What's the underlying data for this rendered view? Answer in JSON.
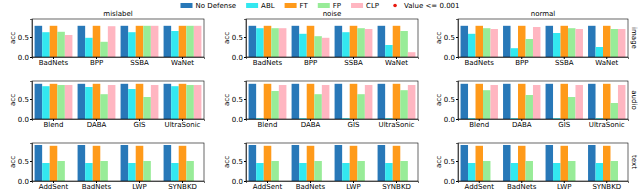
{
  "chart_data": [
    {
      "type": "bar",
      "title": "mislabel",
      "y_label": "acc",
      "categories": [
        "BadNets",
        "BPP",
        "SSBA",
        "WaNet"
      ],
      "ylim": [
        0,
        0.95
      ],
      "yticks": [
        {
          "value": 0,
          "label": "0.0"
        },
        {
          "value": 0.5,
          "label": "0.5"
        }
      ],
      "legend": "top",
      "series": [
        {
          "name": "No Defense",
          "color": "#2878b8",
          "values": [
            0.78,
            0.78,
            0.78,
            0.78
          ]
        },
        {
          "name": "ABL",
          "color": "#33e8f0",
          "values": [
            0.62,
            0.48,
            0.62,
            0.65
          ]
        },
        {
          "name": "FT",
          "color": "#ff9a1a",
          "values": [
            0.78,
            0.78,
            0.78,
            0.78
          ]
        },
        {
          "name": "FP",
          "color": "#98ec98",
          "values": [
            0.63,
            0.38,
            0.78,
            0.78
          ]
        },
        {
          "name": "CLP",
          "color": "#ffb6c1",
          "values": [
            0.55,
            0.77,
            0.78,
            0.78
          ]
        },
        {
          "name": "Value <= 0.001",
          "color": "#e8190f",
          "type": "scatter",
          "marker": "circle",
          "values": [
            null,
            null,
            null,
            null
          ]
        }
      ]
    },
    {
      "type": "bar",
      "title": "noise",
      "y_label": "acc",
      "categories": [
        "BadNets",
        "BPP",
        "SSBA",
        "WaNet"
      ],
      "ylim": [
        0,
        0.95
      ],
      "yticks": [
        {
          "value": 0,
          "label": "0.0"
        },
        {
          "value": 0.5,
          "label": "0.5"
        }
      ],
      "series": [
        {
          "color": "#2878b8",
          "values": [
            0.78,
            0.78,
            0.78,
            0.78
          ]
        },
        {
          "color": "#33e8f0",
          "values": [
            0.72,
            0.58,
            0.62,
            0.3
          ]
        },
        {
          "color": "#ff9a1a",
          "values": [
            0.78,
            0.78,
            0.78,
            0.78
          ]
        },
        {
          "color": "#98ec98",
          "values": [
            0.72,
            0.52,
            0.72,
            0.65
          ]
        },
        {
          "color": "#ffb6c1",
          "values": [
            0.72,
            0.48,
            0.7,
            0.12
          ]
        }
      ]
    },
    {
      "type": "bar",
      "title": "normal",
      "y_label": "acc",
      "annotation": "image",
      "categories": [
        "BadNets",
        "BPP",
        "SSBA",
        "WaNet"
      ],
      "ylim": [
        0,
        0.95
      ],
      "yticks": [
        {
          "value": 0,
          "label": "0.0"
        },
        {
          "value": 0.5,
          "label": "0.5"
        }
      ],
      "series": [
        {
          "color": "#2878b8",
          "values": [
            0.78,
            0.78,
            0.78,
            0.78
          ]
        },
        {
          "color": "#33e8f0",
          "values": [
            0.58,
            0.22,
            0.6,
            0.25
          ]
        },
        {
          "color": "#ff9a1a",
          "values": [
            0.78,
            0.78,
            0.78,
            0.78
          ]
        },
        {
          "color": "#98ec98",
          "values": [
            0.72,
            0.45,
            0.72,
            0.7
          ]
        },
        {
          "color": "#ffb6c1",
          "values": [
            0.7,
            0.75,
            0.7,
            0.7
          ]
        }
      ]
    },
    {
      "type": "bar",
      "y_label": "acc",
      "categories": [
        "Blend",
        "DABA",
        "GIS",
        "UltraSonic"
      ],
      "ylim": [
        0,
        0.95
      ],
      "yticks": [
        {
          "value": 0,
          "label": "0.0"
        },
        {
          "value": 0.5,
          "label": "0.5"
        }
      ],
      "series": [
        {
          "color": "#2878b8",
          "values": [
            0.88,
            0.88,
            0.88,
            0.88
          ]
        },
        {
          "color": "#33e8f0",
          "values": [
            0.82,
            0.8,
            0.75,
            0.82
          ]
        },
        {
          "color": "#ff9a1a",
          "values": [
            0.88,
            0.88,
            0.88,
            0.88
          ]
        },
        {
          "color": "#98ec98",
          "values": [
            0.85,
            0.62,
            0.55,
            0.85
          ]
        },
        {
          "color": "#ffb6c1",
          "values": [
            0.85,
            0.85,
            0.85,
            0.85
          ]
        }
      ]
    },
    {
      "type": "bar",
      "y_label": "acc",
      "categories": [
        "Blend",
        "DABA",
        "GIS",
        "UltraSonic"
      ],
      "ylim": [
        0,
        0.95
      ],
      "yticks": [
        {
          "value": 0,
          "label": "0.0"
        },
        {
          "value": 0.5,
          "label": "0.5"
        }
      ],
      "series": [
        {
          "color": "#2878b8",
          "values": [
            0.88,
            0.88,
            0.88,
            0.88
          ]
        },
        {
          "color": "#33e8f0",
          "values": [
            0.02,
            0.02,
            0.02,
            0.02
          ]
        },
        {
          "color": "#ff9a1a",
          "values": [
            0.88,
            0.88,
            0.88,
            0.88
          ]
        },
        {
          "color": "#98ec98",
          "values": [
            0.7,
            0.62,
            0.62,
            0.72
          ]
        },
        {
          "color": "#ffb6c1",
          "values": [
            0.85,
            0.85,
            0.85,
            0.85
          ]
        }
      ]
    },
    {
      "type": "bar",
      "y_label": "acc",
      "annotation": "audio",
      "categories": [
        "Blend",
        "DABA",
        "GIS",
        "UltraSonic"
      ],
      "ylim": [
        0,
        0.95
      ],
      "yticks": [
        {
          "value": 0,
          "label": "0.0"
        },
        {
          "value": 0.5,
          "label": "0.5"
        }
      ],
      "series": [
        {
          "color": "#2878b8",
          "values": [
            0.88,
            0.88,
            0.88,
            0.88
          ]
        },
        {
          "color": "#33e8f0",
          "values": [
            0.02,
            0.02,
            0.02,
            0.02
          ]
        },
        {
          "color": "#ff9a1a",
          "values": [
            0.88,
            0.88,
            0.88,
            0.88
          ]
        },
        {
          "color": "#98ec98",
          "values": [
            0.72,
            0.6,
            0.55,
            0.4
          ]
        },
        {
          "color": "#ffb6c1",
          "values": [
            0.85,
            0.85,
            0.85,
            0.85
          ]
        }
      ]
    },
    {
      "type": "bar",
      "y_label": "acc",
      "categories": [
        "AddSent",
        "BadNets",
        "LWP",
        "SYNBKD"
      ],
      "ylim": [
        0,
        0.95
      ],
      "yticks": [
        {
          "value": 0,
          "label": "0.0"
        },
        {
          "value": 0.5,
          "label": "0.5"
        }
      ],
      "series": [
        {
          "color": "#2878b8",
          "values": [
            0.9,
            0.9,
            0.9,
            0.9
          ]
        },
        {
          "color": "#33e8f0",
          "values": [
            0.45,
            0.45,
            0.45,
            0.45
          ]
        },
        {
          "color": "#ff9a1a",
          "values": [
            0.88,
            0.88,
            0.88,
            0.88
          ]
        },
        {
          "color": "#98ec98",
          "values": [
            0.5,
            0.5,
            0.5,
            0.5
          ]
        },
        {
          "color": "#ffb6c1",
          "values": [
            0,
            0,
            0,
            0
          ]
        }
      ]
    },
    {
      "type": "bar",
      "y_label": "acc",
      "categories": [
        "AddSent",
        "BadNets",
        "LWP",
        "SYNBKD"
      ],
      "ylim": [
        0,
        0.95
      ],
      "yticks": [
        {
          "value": 0,
          "label": "0.0"
        },
        {
          "value": 0.5,
          "label": "0.5"
        }
      ],
      "series": [
        {
          "color": "#2878b8",
          "values": [
            0.9,
            0.9,
            0.9,
            0.9
          ]
        },
        {
          "color": "#33e8f0",
          "values": [
            0.45,
            0.45,
            0.45,
            0.45
          ]
        },
        {
          "color": "#ff9a1a",
          "values": [
            0.88,
            0.88,
            0.88,
            0.88
          ]
        },
        {
          "color": "#98ec98",
          "values": [
            0.5,
            0.5,
            0.5,
            0.5
          ]
        },
        {
          "color": "#ffb6c1",
          "values": [
            0,
            0,
            0,
            0
          ]
        }
      ]
    },
    {
      "type": "bar",
      "y_label": "acc",
      "annotation": "text",
      "categories": [
        "AddSent",
        "BadNets",
        "LWP",
        "SYNBKD"
      ],
      "ylim": [
        0,
        0.95
      ],
      "yticks": [
        {
          "value": 0,
          "label": "0.0"
        },
        {
          "value": 0.5,
          "label": "0.5"
        }
      ],
      "series": [
        {
          "color": "#2878b8",
          "values": [
            0.9,
            0.9,
            0.9,
            0.9
          ]
        },
        {
          "color": "#33e8f0",
          "values": [
            0.45,
            0.45,
            0.45,
            0.45
          ]
        },
        {
          "color": "#ff9a1a",
          "values": [
            0.88,
            0.88,
            0.88,
            0.88
          ]
        },
        {
          "color": "#98ec98",
          "values": [
            0.5,
            0.5,
            0.5,
            0.5
          ]
        },
        {
          "color": "#ffb6c1",
          "values": [
            0,
            0,
            0,
            0
          ]
        }
      ]
    }
  ]
}
